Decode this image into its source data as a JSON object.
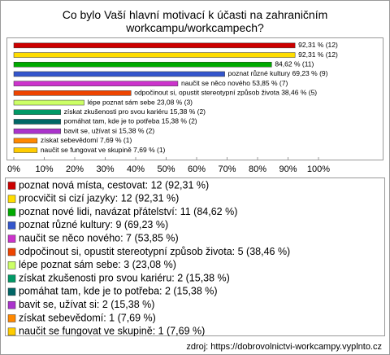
{
  "chart_data": {
    "type": "barh",
    "title": "Co bylo Vaší hlavní motivací k účasti na zahraničním workcampu/workcampech?",
    "categories": [
      "poznat nová místa, cestovat: 12 (92,31 %)",
      "procvičit si cizí jazyky: 12 (92,31 %)",
      "poznat nové lidi, navázat přátelství: 11 (84,62 %)",
      "poznat různé kultury: 9 (69,23 %)",
      "naučit se něco nového: 7 (53,85 %)",
      "odpočinout si, opustit stereotypní způsob života: 5 (38,46 %)",
      "lépe poznat sám sebe: 3 (23,08 %)",
      "získat zkušenosti pro svou kariéru: 2 (15,38 %)",
      "pomáhat tam, kde je to potřeba: 2 (15,38 %)",
      "bavit se, užívat si: 2 (15,38 %)",
      "získat sebevědomí: 1 (7,69 %)",
      "naučit se fungovat ve skupině: 1 (7,69 %)"
    ],
    "values": [
      92.31,
      92.31,
      84.62,
      69.23,
      53.85,
      38.46,
      23.08,
      15.38,
      15.38,
      15.38,
      7.69,
      7.69
    ],
    "value_labels": [
      "92,31 % (12)",
      "92,31 % (12)",
      "84,62 % (11)",
      "poznat různé kultury 69,23 % (9)",
      "naučit se něco nového 53,85 % (7)",
      "odpočinout si, opustit stereotypní způsob života 38,46 % (5)",
      "lépe poznat sám sebe 23,08 % (3)",
      "získat zkušenosti pro svou kariéru 15,38 % (2)",
      "pomáhat tam, kde je to potřeba 15,38 % (2)",
      "bavit se, užívat si 15,38 % (2)",
      "získat sebevědomí 7,69 % (1)",
      "naučit se fungovat ve skupině 7,69 % (1)"
    ],
    "colors": [
      "#cc0000",
      "#ffdd00",
      "#00aa00",
      "#3355cc",
      "#cc33cc",
      "#ee4400",
      "#ccff66",
      "#009966",
      "#006666",
      "#aa33cc",
      "#ff8800",
      "#ffcc00"
    ],
    "xlim": [
      0,
      100
    ],
    "xticks": [
      {
        "value": 0,
        "label": "0%"
      },
      {
        "value": 10,
        "label": "10%"
      },
      {
        "value": 20,
        "label": "20%"
      },
      {
        "value": 30,
        "label": "30%"
      },
      {
        "value": 40,
        "label": "40%"
      },
      {
        "value": 50,
        "label": "50%"
      },
      {
        "value": 60,
        "label": "60%"
      },
      {
        "value": 70,
        "label": "70%"
      },
      {
        "value": 80,
        "label": "80%"
      },
      {
        "value": 90,
        "label": "90%"
      },
      {
        "value": 100,
        "label": "100%"
      }
    ],
    "grid": false,
    "source": "zdroj: https://dobrovolnictvi-workcampy.vyplnto.cz"
  }
}
